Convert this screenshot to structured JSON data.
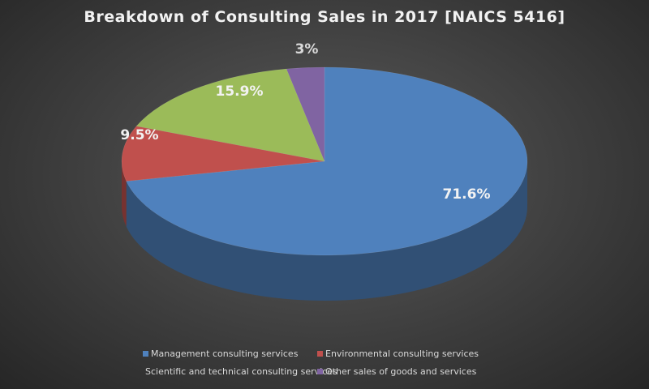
{
  "chart_data": {
    "type": "pie",
    "title": "Breakdown of Consulting Sales in 2017 [NAICS 5416]",
    "style": "3d",
    "legend_position": "bottom",
    "categories": [
      "Management consulting services",
      "Environmental consulting services",
      "Scientific and technical consulting services",
      "Other sales of goods and services"
    ],
    "values": [
      71.6,
      9.5,
      15.9,
      3
    ],
    "labels": [
      "71.6%",
      "9.5%",
      "15.9%",
      "3%"
    ],
    "colors": [
      "#4f81bd",
      "#c0504d",
      "#9bbb59",
      "#8064a2"
    ]
  }
}
